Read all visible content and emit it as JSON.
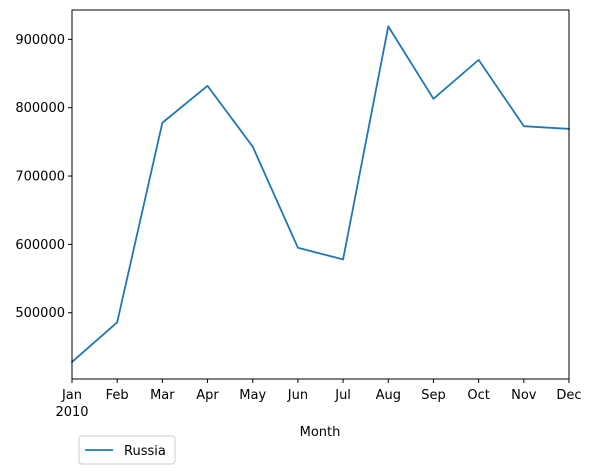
{
  "chart_data": {
    "type": "line",
    "x": [
      "Jan",
      "Feb",
      "Mar",
      "Apr",
      "May",
      "Jun",
      "Jul",
      "Aug",
      "Sep",
      "Oct",
      "Nov",
      "Dec"
    ],
    "x_sublabel": "2010",
    "xlabel": "Month",
    "ylabel": "",
    "ylim": [
      403000,
      943000
    ],
    "yticks": [
      500000,
      600000,
      700000,
      800000,
      900000
    ],
    "ytick_labels": [
      "500000",
      "600000",
      "700000",
      "800000",
      "900000"
    ],
    "series": [
      {
        "name": "Russia",
        "color": "#1f77b4",
        "values": [
          428000,
          486000,
          778000,
          832000,
          743000,
          595000,
          578000,
          919000,
          813000,
          870000,
          773000,
          769000
        ]
      }
    ],
    "grid": false,
    "legend_position": "bottom-left, below plot"
  }
}
